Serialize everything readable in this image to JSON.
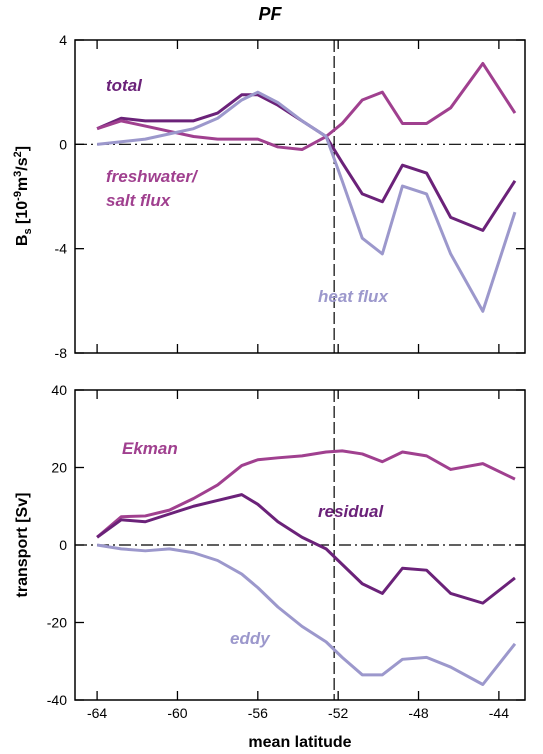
{
  "chart_data": [
    {
      "type": "line",
      "title": "PF",
      "ylabel_parts": [
        "B",
        "s",
        " [10",
        "-9",
        "m",
        "3",
        "/s",
        "2",
        "]"
      ],
      "x": [
        -64,
        -62.8,
        -61.6,
        -60.4,
        -59.2,
        -58,
        -56.8,
        -56,
        -55,
        -53.8,
        -52.6,
        -51.8,
        -50.8,
        -49.8,
        -48.8,
        -47.6,
        -46.4,
        -44.8,
        -43.2
      ],
      "series": [
        {
          "name": "total",
          "color": "#6b2279",
          "values": [
            0.6,
            1.0,
            0.9,
            0.9,
            0.9,
            1.2,
            1.9,
            1.9,
            1.5,
            0.9,
            0.3,
            -0.7,
            -1.9,
            -2.2,
            -0.8,
            -1.1,
            -2.8,
            -3.3,
            -1.4
          ]
        },
        {
          "name": "freshwater/\nsalt flux",
          "color": "#a0408f",
          "values": [
            0.6,
            0.9,
            0.7,
            0.5,
            0.3,
            0.2,
            0.2,
            0.2,
            -0.1,
            -0.2,
            0.3,
            0.8,
            1.7,
            2.0,
            0.8,
            0.8,
            1.4,
            3.1,
            1.2
          ]
        },
        {
          "name": "heat flux",
          "color": "#9c98cc",
          "values": [
            0.0,
            0.1,
            0.2,
            0.4,
            0.6,
            1.0,
            1.7,
            2.0,
            1.6,
            0.9,
            0.3,
            -1.4,
            -3.6,
            -4.2,
            -1.6,
            -1.9,
            -4.2,
            -6.4,
            -2.6
          ]
        }
      ],
      "xlim": [
        -65.1,
        -42.7
      ],
      "xticks": [
        -64,
        -60,
        -56,
        -52,
        -48,
        -44
      ],
      "ylim": [
        -8,
        4
      ],
      "yticks": [
        -8,
        -4,
        0,
        4
      ],
      "vline": -52.2,
      "hline": 0
    },
    {
      "type": "line",
      "xlabel": "mean latitude",
      "ylabel": "transport [Sv]",
      "x": [
        -64,
        -62.8,
        -61.6,
        -60.4,
        -59.2,
        -58,
        -56.8,
        -56,
        -55,
        -53.8,
        -52.6,
        -51.8,
        -50.8,
        -49.8,
        -48.8,
        -47.6,
        -46.4,
        -44.8,
        -43.2
      ],
      "series": [
        {
          "name": "Ekman",
          "color": "#a0408f",
          "values": [
            2,
            7.3,
            7.5,
            9,
            12,
            15.5,
            20.5,
            22,
            22.5,
            23,
            24,
            24.3,
            23.5,
            21.5,
            24,
            23,
            19.5,
            21,
            17
          ]
        },
        {
          "name": "residual",
          "color": "#6b2279",
          "values": [
            2,
            6.5,
            6,
            8,
            10,
            11.5,
            13,
            10.5,
            6,
            2,
            -1,
            -5,
            -10,
            -12.5,
            -6,
            -6.5,
            -12.5,
            -15,
            -8.5
          ]
        },
        {
          "name": "eddy",
          "color": "#9c98cc",
          "values": [
            0,
            -1,
            -1.5,
            -1,
            -2,
            -4,
            -7.5,
            -11,
            -16,
            -21,
            -25,
            -29,
            -33.5,
            -33.5,
            -29.5,
            -29,
            -31.5,
            -36,
            -25.5
          ]
        }
      ],
      "xlim": [
        -65.1,
        -42.7
      ],
      "xticks": [
        -64,
        -60,
        -56,
        -52,
        -48,
        -44
      ],
      "ylim": [
        -40,
        40
      ],
      "yticks": [
        -40,
        -20,
        0,
        20,
        40
      ],
      "vline": -52.2,
      "hline": 0
    }
  ]
}
